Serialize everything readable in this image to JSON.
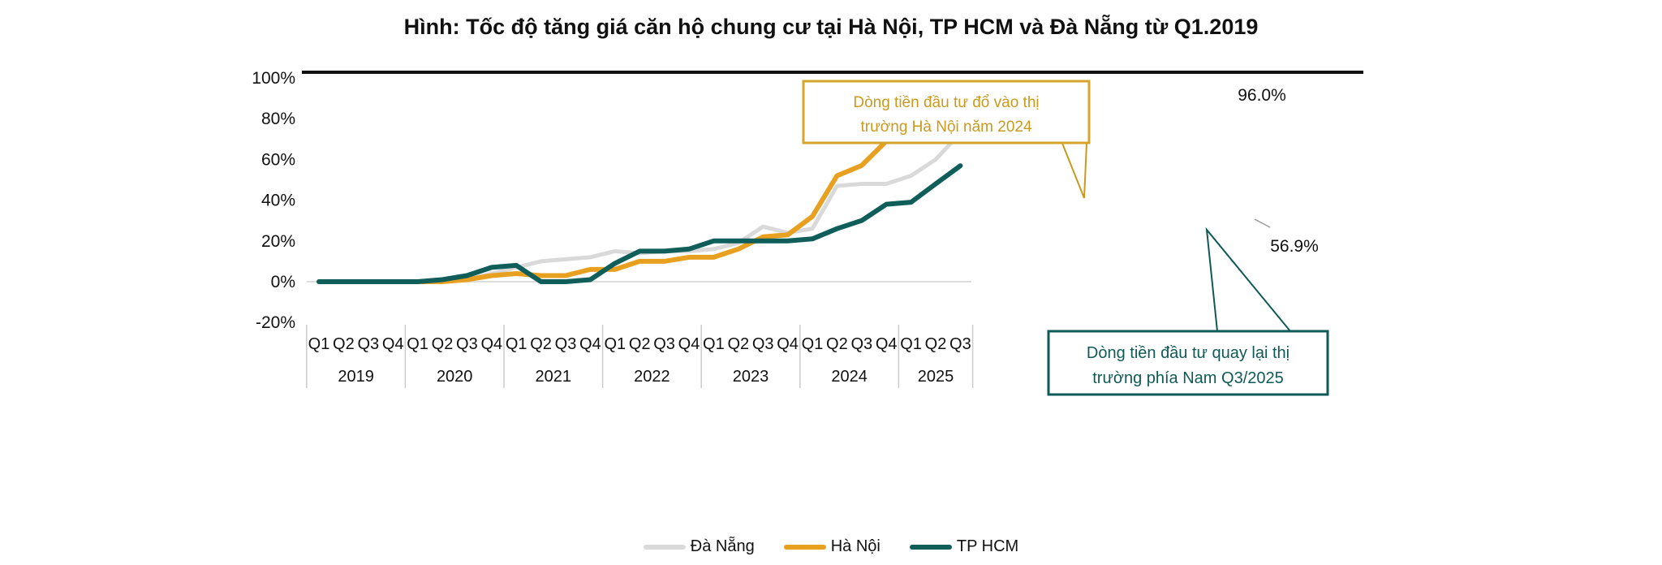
{
  "title": "Hình: Tốc độ tăng giá căn hộ chung cư tại Hà Nội, TP HCM và Đà Nẵng từ  Q1.2019",
  "colors": {
    "da_nang": "#d9d9d9",
    "ha_noi": "#e8a020",
    "tp_hcm": "#0f5e5a",
    "annot_hn": "#c99a1e",
    "annot_hcm": "#0f5a57"
  },
  "annotations": {
    "ha_noi": {
      "line1": "Dòng tiền đầu tư đổ vào thị",
      "line2": "trường Hà Nội năm 2024"
    },
    "tp_hcm": {
      "line1": "Dòng tiền đầu tư quay lại thị",
      "line2": "trường phía Nam Q3/2025"
    },
    "ha_noi_last": "96.0%",
    "tp_hcm_last": "56.9%"
  },
  "legend": [
    {
      "label": "Đà Nẵng",
      "color": "#d9d9d9"
    },
    {
      "label": "Hà Nội",
      "color": "#e8a020"
    },
    {
      "label": "TP HCM",
      "color": "#0f5e5a"
    }
  ],
  "chart_data": {
    "type": "line",
    "title": "Hình: Tốc độ tăng giá căn hộ chung cư tại Hà Nội, TP HCM và Đà Nẵng từ  Q1.2019",
    "xlabel": "",
    "ylabel": "",
    "ylim": [
      -20,
      100
    ],
    "yticks": [
      "100%",
      "80%",
      "60%",
      "40%",
      "20%",
      "0%",
      "-20%"
    ],
    "grid": false,
    "legend_position": "bottom",
    "years": [
      "2019",
      "2020",
      "2021",
      "2022",
      "2023",
      "2024",
      "2025"
    ],
    "quarters_per_year": [
      4,
      4,
      4,
      4,
      4,
      4,
      3
    ],
    "categories": [
      "Q1 2019",
      "Q2 2019",
      "Q3 2019",
      "Q4 2019",
      "Q1 2020",
      "Q2 2020",
      "Q3 2020",
      "Q4 2020",
      "Q1 2021",
      "Q2 2021",
      "Q3 2021",
      "Q4 2021",
      "Q1 2022",
      "Q2 2022",
      "Q3 2022",
      "Q4 2022",
      "Q1 2023",
      "Q2 2023",
      "Q3 2023",
      "Q4 2023",
      "Q1 2024",
      "Q2 2024",
      "Q3 2024",
      "Q4 2024",
      "Q1 2025",
      "Q2 2025",
      "Q3 2025"
    ],
    "series": [
      {
        "name": "Đà Nẵng",
        "values": [
          0,
          0,
          0,
          0,
          0,
          0,
          1,
          4,
          7,
          10,
          11,
          12,
          15,
          14,
          15,
          15,
          16,
          19,
          27,
          24,
          26,
          47,
          48,
          48,
          52,
          60,
          73
        ]
      },
      {
        "name": "Hà Nội",
        "values": [
          0,
          0,
          0,
          0,
          0,
          0,
          1,
          3,
          4,
          3,
          3,
          6,
          6,
          10,
          10,
          12,
          12,
          16,
          22,
          23,
          32,
          52,
          57,
          69,
          71,
          85,
          96.0
        ]
      },
      {
        "name": "TP HCM",
        "values": [
          0,
          0,
          0,
          0,
          0,
          1,
          3,
          7,
          8,
          0,
          0,
          1,
          9,
          15,
          15,
          16,
          20,
          20,
          20,
          20,
          21,
          26,
          30,
          38,
          39,
          48,
          56.9
        ]
      }
    ],
    "annotations": [
      "Dòng tiền đầu tư đổ vào thị trường Hà Nội năm 2024",
      "Dòng tiền đầu tư quay lại thị trường phía Nam Q3/2025",
      "96.0%",
      "56.9%"
    ]
  }
}
